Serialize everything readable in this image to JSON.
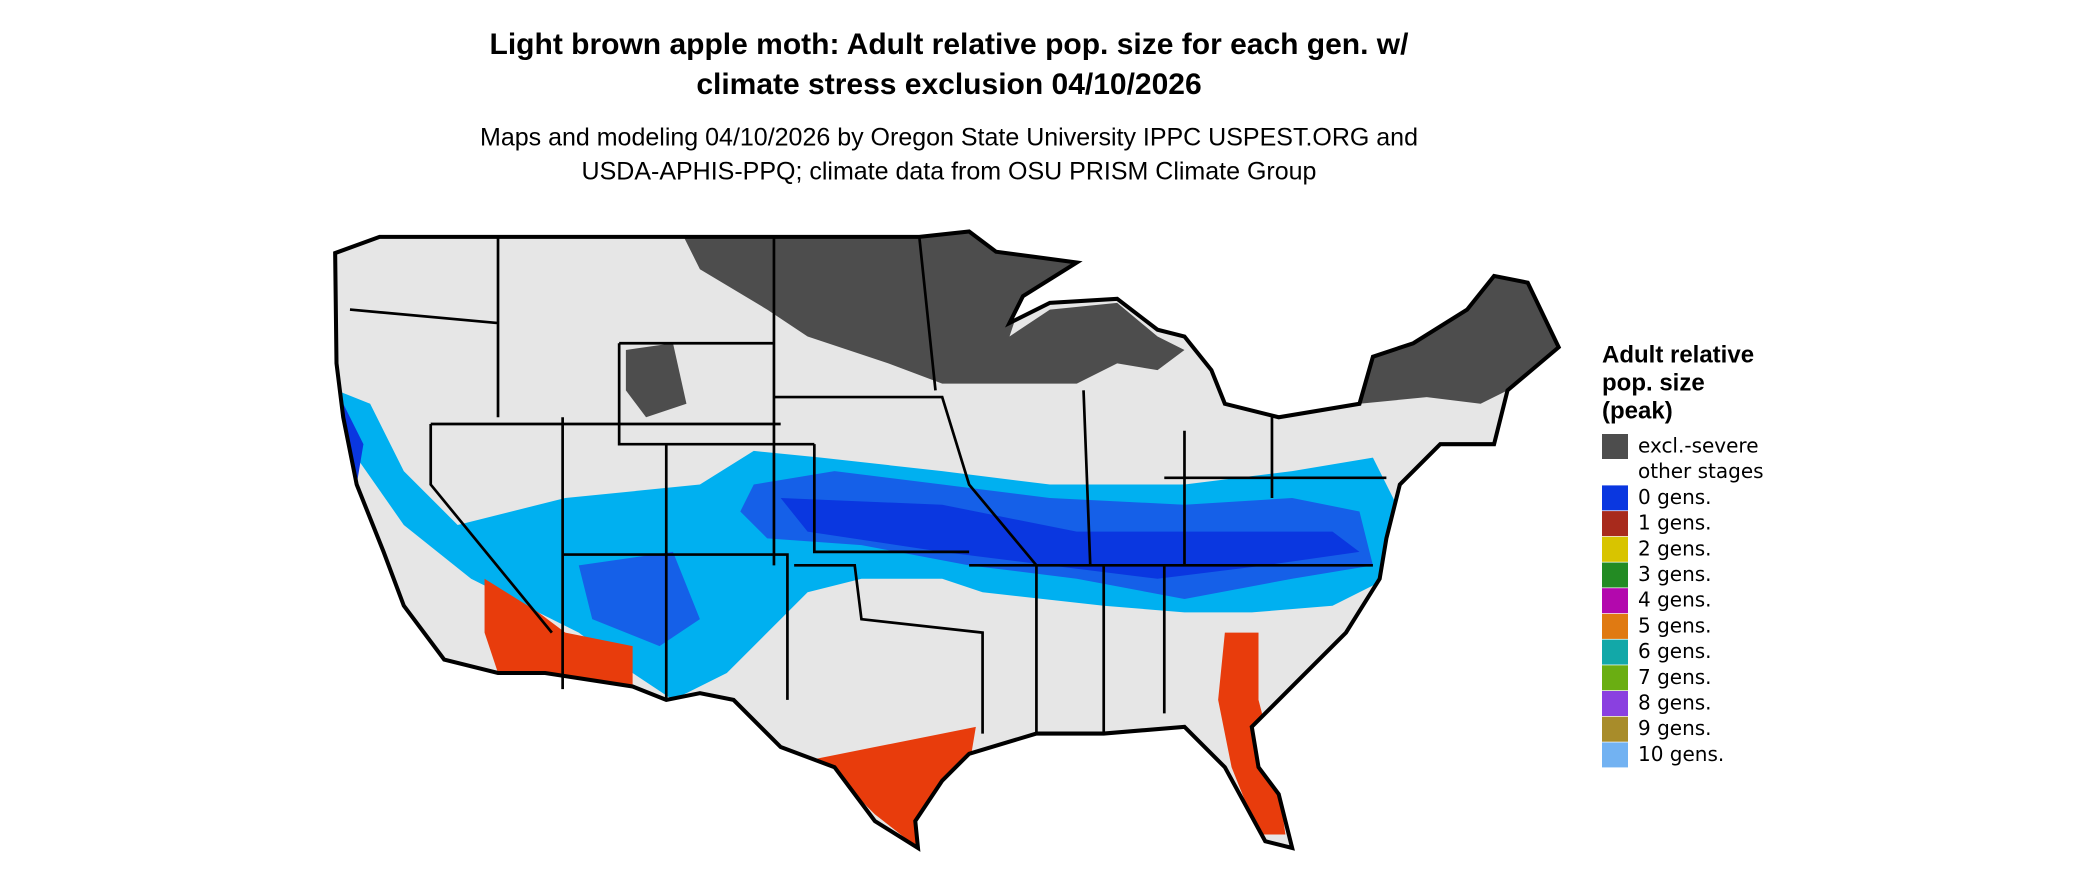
{
  "title": [
    "Light brown apple moth: Adult relative pop. size for each gen. w/",
    "climate stress exclusion 04/10/2026"
  ],
  "subtitle": [
    "Maps and modeling 04/10/2026 by Oregon State University IPPC USPEST.ORG and",
    "USDA-APHIS-PPQ; climate data from OSU PRISM Climate Group"
  ],
  "legend": {
    "title": [
      "Adult relative",
      "pop. size",
      "(peak)"
    ],
    "items": [
      {
        "label": "excl.-severe",
        "color": "#4d4d4d"
      },
      {
        "label": "other stages",
        "color": "#ffffff"
      },
      {
        "label": "0 gens.",
        "color": "#0a37e0"
      },
      {
        "label": "1 gens.",
        "color": "#a82a1c"
      },
      {
        "label": "2 gens.",
        "color": "#d8c400"
      },
      {
        "label": "3 gens.",
        "color": "#238b23"
      },
      {
        "label": "4 gens.",
        "color": "#b308ad"
      },
      {
        "label": "5 gens.",
        "color": "#e07a12"
      },
      {
        "label": "6 gens.",
        "color": "#12a8a8"
      },
      {
        "label": "7 gens.",
        "color": "#6aae12"
      },
      {
        "label": "8 gens.",
        "color": "#8a40e0"
      },
      {
        "label": "9 gens.",
        "color": "#a88c2a"
      },
      {
        "label": "10 gens.",
        "color": "#72b2f2"
      }
    ]
  }
}
